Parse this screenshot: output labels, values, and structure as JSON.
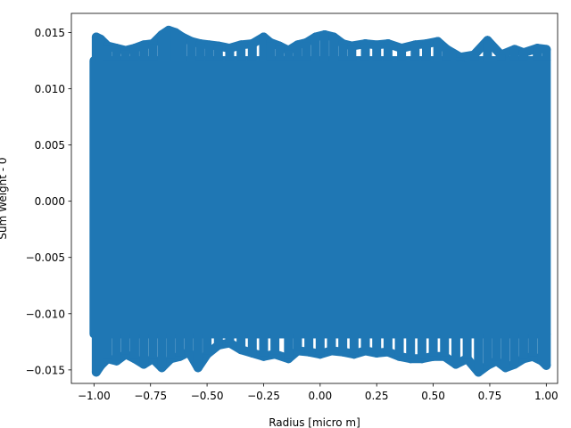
{
  "chart_data": {
    "type": "scatter",
    "xlabel": "Radius [micro m]",
    "ylabel": "Sum Weight - 0",
    "xlim": [
      -1.1,
      1.05
    ],
    "ylim": [
      -0.0162,
      0.0167
    ],
    "xticks": [
      -1.0,
      -0.75,
      -0.5,
      -0.25,
      0.0,
      0.25,
      0.5,
      0.75,
      1.0
    ],
    "xtick_labels": [
      "−1.00",
      "−0.75",
      "−0.50",
      "−0.25",
      "0.00",
      "0.25",
      "0.50",
      "0.75",
      "1.00"
    ],
    "yticks": [
      -0.015,
      -0.01,
      -0.005,
      0.0,
      0.005,
      0.01,
      0.015
    ],
    "ytick_labels": [
      "−0.015",
      "−0.010",
      "−0.005",
      "0.000",
      "0.005",
      "0.010",
      "0.015"
    ],
    "grid": false,
    "legend": "none",
    "marker_color": "#1f77b4",
    "series": [
      {
        "dense_region": {
          "x_range": [
            -1.0,
            1.0
          ],
          "y_range": [
            -0.0118,
            0.0125
          ]
        },
        "upper_band_points": [
          [
            -0.99,
            0.0146
          ],
          [
            -0.97,
            0.0144
          ],
          [
            -0.94,
            0.0138
          ],
          [
            -0.9,
            0.0136
          ],
          [
            -0.86,
            0.0134
          ],
          [
            -0.82,
            0.0136
          ],
          [
            -0.78,
            0.0139
          ],
          [
            -0.74,
            0.014
          ],
          [
            -0.7,
            0.0148
          ],
          [
            -0.67,
            0.0152
          ],
          [
            -0.64,
            0.015
          ],
          [
            -0.61,
            0.0146
          ],
          [
            -0.57,
            0.0142
          ],
          [
            -0.53,
            0.014
          ],
          [
            -0.49,
            0.0139
          ],
          [
            -0.45,
            0.0138
          ],
          [
            -0.4,
            0.0136
          ],
          [
            -0.35,
            0.0139
          ],
          [
            -0.3,
            0.014
          ],
          [
            -0.25,
            0.0146
          ],
          [
            -0.22,
            0.0141
          ],
          [
            -0.18,
            0.0138
          ],
          [
            -0.14,
            0.0134
          ],
          [
            -0.1,
            0.0139
          ],
          [
            -0.06,
            0.0141
          ],
          [
            -0.02,
            0.0146
          ],
          [
            0.02,
            0.0148
          ],
          [
            0.06,
            0.0146
          ],
          [
            0.1,
            0.014
          ],
          [
            0.14,
            0.0138
          ],
          [
            0.2,
            0.014
          ],
          [
            0.25,
            0.0139
          ],
          [
            0.3,
            0.014
          ],
          [
            0.36,
            0.0136
          ],
          [
            0.42,
            0.0139
          ],
          [
            0.47,
            0.014
          ],
          [
            0.52,
            0.0142
          ],
          [
            0.56,
            0.0135
          ],
          [
            0.62,
            0.0128
          ],
          [
            0.68,
            0.013
          ],
          [
            0.74,
            0.0143
          ],
          [
            0.8,
            0.013
          ],
          [
            0.86,
            0.0135
          ],
          [
            0.9,
            0.0132
          ],
          [
            0.96,
            0.0136
          ],
          [
            1.0,
            0.0135
          ]
        ],
        "lower_band_points": [
          [
            -0.99,
            -0.0152
          ],
          [
            -0.97,
            -0.0146
          ],
          [
            -0.94,
            -0.014
          ],
          [
            -0.9,
            -0.0142
          ],
          [
            -0.86,
            -0.0136
          ],
          [
            -0.82,
            -0.014
          ],
          [
            -0.78,
            -0.0145
          ],
          [
            -0.74,
            -0.014
          ],
          [
            -0.7,
            -0.0148
          ],
          [
            -0.66,
            -0.014
          ],
          [
            -0.62,
            -0.0138
          ],
          [
            -0.58,
            -0.0134
          ],
          [
            -0.54,
            -0.0148
          ],
          [
            -0.5,
            -0.0136
          ],
          [
            -0.45,
            -0.0128
          ],
          [
            -0.4,
            -0.0126
          ],
          [
            -0.35,
            -0.0132
          ],
          [
            -0.3,
            -0.0135
          ],
          [
            -0.25,
            -0.0138
          ],
          [
            -0.2,
            -0.0136
          ],
          [
            -0.14,
            -0.014
          ],
          [
            -0.1,
            -0.0133
          ],
          [
            -0.05,
            -0.0134
          ],
          [
            0.0,
            -0.0136
          ],
          [
            0.05,
            -0.0133
          ],
          [
            0.1,
            -0.0134
          ],
          [
            0.15,
            -0.0136
          ],
          [
            0.2,
            -0.0133
          ],
          [
            0.25,
            -0.0135
          ],
          [
            0.3,
            -0.0134
          ],
          [
            0.35,
            -0.0138
          ],
          [
            0.4,
            -0.014
          ],
          [
            0.45,
            -0.014
          ],
          [
            0.5,
            -0.0138
          ],
          [
            0.55,
            -0.0138
          ],
          [
            0.6,
            -0.0145
          ],
          [
            0.65,
            -0.014
          ],
          [
            0.7,
            -0.0152
          ],
          [
            0.74,
            -0.0146
          ],
          [
            0.78,
            -0.0142
          ],
          [
            0.82,
            -0.0148
          ],
          [
            0.86,
            -0.0145
          ],
          [
            0.9,
            -0.014
          ],
          [
            0.94,
            -0.0138
          ],
          [
            0.98,
            -0.0142
          ],
          [
            1.0,
            -0.0146
          ]
        ]
      }
    ]
  }
}
